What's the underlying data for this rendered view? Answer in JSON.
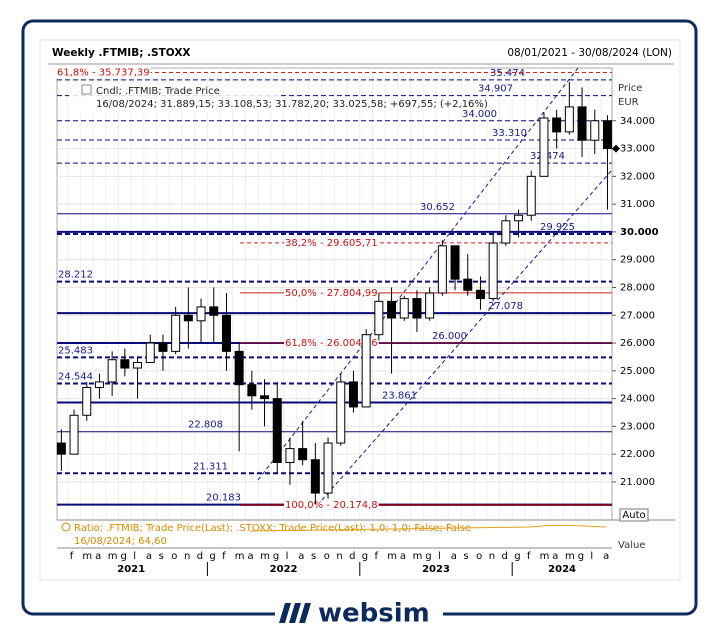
{
  "chart_data": {
    "type": "candlestick",
    "title": "Weekly .FTMIB; .STOXX",
    "date_range": "08/01/2021 - 30/08/2024 (LON)",
    "legend_lines": [
      "Cndl; .FTMIB; Trade Price",
      "16/08/2024; 31.889,15; 33.108,53; 31.782,20; 33.025,58; +697,55; (+2,16%)"
    ],
    "y_label": "Price",
    "y_unit": "EUR",
    "x": [
      "2021-01",
      "2021-02",
      "2021-03",
      "2021-04",
      "2021-05",
      "2021-06",
      "2021-07",
      "2021-08",
      "2021-09",
      "2021-10",
      "2021-11",
      "2021-12",
      "2022-01",
      "2022-02",
      "2022-03",
      "2022-04",
      "2022-05",
      "2022-06",
      "2022-07",
      "2022-08",
      "2022-09",
      "2022-10",
      "2022-11",
      "2022-12",
      "2023-01",
      "2023-02",
      "2023-03",
      "2023-04",
      "2023-05",
      "2023-06",
      "2023-07",
      "2023-08",
      "2023-09",
      "2023-10",
      "2023-11",
      "2023-12",
      "2024-01",
      "2024-02",
      "2024-03",
      "2024-04",
      "2024-05",
      "2024-06",
      "2024-07",
      "2024-08"
    ],
    "open": [
      22400,
      22000,
      23400,
      24400,
      24600,
      25400,
      25100,
      25300,
      26000,
      25700,
      27000,
      26800,
      27300,
      27000,
      25700,
      24500,
      24100,
      24000,
      21700,
      22200,
      21800,
      20600,
      22400,
      24600,
      23700,
      26300,
      27500,
      26900,
      27600,
      26900,
      27800,
      29500,
      28300,
      27900,
      27600,
      29600,
      30400,
      30600,
      32000,
      34100,
      33600,
      34500,
      33300,
      34000
    ],
    "high": [
      22900,
      23600,
      24600,
      24900,
      25700,
      25800,
      25500,
      26300,
      26300,
      27300,
      28000,
      27600,
      28000,
      27800,
      26000,
      25000,
      24700,
      24600,
      22600,
      23200,
      22400,
      22600,
      24900,
      25000,
      26500,
      27800,
      28000,
      27700,
      27900,
      28000,
      29700,
      29500,
      29200,
      28400,
      29900,
      30600,
      30800,
      32200,
      34300,
      34400,
      35400,
      35200,
      34400,
      34200
    ],
    "low": [
      21400,
      22000,
      23200,
      24000,
      24100,
      24800,
      24000,
      25300,
      25000,
      25600,
      25800,
      26000,
      26000,
      25000,
      22100,
      23600,
      23000,
      21300,
      20900,
      21600,
      20200,
      20400,
      22300,
      23500,
      23700,
      26100,
      24900,
      26800,
      26400,
      26800,
      27700,
      27900,
      27700,
      27200,
      27500,
      29500,
      29800,
      30400,
      32000,
      33000,
      33500,
      32700,
      32800,
      30800
    ],
    "close": [
      22000,
      23400,
      24400,
      24600,
      25400,
      25100,
      25300,
      26000,
      25700,
      27000,
      26800,
      27300,
      27000,
      25700,
      24500,
      24100,
      24000,
      21700,
      22200,
      21800,
      20600,
      22400,
      24600,
      23700,
      26300,
      27500,
      26900,
      27600,
      26900,
      27800,
      29500,
      28300,
      27900,
      27600,
      29600,
      30400,
      30600,
      32000,
      34100,
      33600,
      34500,
      33300,
      34000,
      33000
    ],
    "month_labels": [
      "f",
      "m",
      "a",
      "m",
      "g",
      "l",
      "a",
      "s",
      "o",
      "n",
      "d",
      "g",
      "f",
      "m",
      "a",
      "m",
      "g",
      "l",
      "a",
      "s",
      "o",
      "n",
      "d",
      "g",
      "f",
      "m",
      "a",
      "m",
      "g",
      "l",
      "a",
      "s",
      "o",
      "n",
      "d",
      "g",
      "f",
      "m",
      "a",
      "m",
      "g",
      "l",
      "a"
    ],
    "year_labels": [
      "2021",
      "2022",
      "2023",
      "2024"
    ],
    "ylim": [
      19630,
      35900
    ],
    "yticks": [
      {
        "value": 21000,
        "label": "21.000"
      },
      {
        "value": 22000,
        "label": "22.000"
      },
      {
        "value": 23000,
        "label": "23.000"
      },
      {
        "value": 24000,
        "label": "24.000"
      },
      {
        "value": 25000,
        "label": "25.000"
      },
      {
        "value": 26000,
        "label": "26.000"
      },
      {
        "value": 27000,
        "label": "27.000"
      },
      {
        "value": 28000,
        "label": "28.000"
      },
      {
        "value": 29000,
        "label": "29.000"
      },
      {
        "value": 30000,
        "label": "30.000"
      },
      {
        "value": 31000,
        "label": "31.000"
      },
      {
        "value": 32000,
        "label": "32.000"
      },
      {
        "value": 33000,
        "label": "33.000"
      },
      {
        "value": 34000,
        "label": "34.000"
      }
    ],
    "grid": true,
    "levels": [
      {
        "value": 35474,
        "label": "35.474",
        "style": "dashed"
      },
      {
        "value": 34907,
        "label": "34.907",
        "style": "dashed"
      },
      {
        "value": 34000,
        "label": "34.000",
        "style": "dashed"
      },
      {
        "value": 33310,
        "label": "33.310",
        "style": "dashed"
      },
      {
        "value": 32474,
        "label": "32.474",
        "style": "dashed"
      },
      {
        "value": 30652,
        "label": "30.652",
        "style": "solid"
      },
      {
        "value": 30000,
        "style": "thick"
      },
      {
        "value": 29925,
        "label": "29.925",
        "style": "thickdashed"
      },
      {
        "value": 28212,
        "label": "28.212",
        "style": "thickdashed"
      },
      {
        "value": 27078,
        "label": "27.078",
        "style": "thick"
      },
      {
        "value": 26000,
        "label": "26.000",
        "style": "thick"
      },
      {
        "value": 25483,
        "label": "25.483",
        "style": "thickdashed"
      },
      {
        "value": 24544,
        "label": "24.544",
        "style": "thickdashed"
      },
      {
        "value": 23861,
        "label": "23.861",
        "style": "thick"
      },
      {
        "value": 22808,
        "label": "22.808",
        "style": "solid"
      },
      {
        "value": 21311,
        "label": "21.311",
        "style": "thickdashed"
      },
      {
        "value": 20183,
        "label": "20.183",
        "style": "thick"
      }
    ],
    "fibonacci": [
      {
        "value": 35737.39,
        "label": "61,8% - 35.737,39",
        "style": "dashed"
      },
      {
        "value": 29605.71,
        "label": "38,2% - 29.605,71",
        "style": "dashed"
      },
      {
        "value": 27804.99,
        "label": "50,0% - 27.804,99",
        "style": "solid"
      },
      {
        "value": 26004.26,
        "label": "61,8% - 26.004,26",
        "style": "solid"
      },
      {
        "value": 20174.8,
        "label": "100,0% - 20.174,8",
        "style": "thick"
      }
    ],
    "scale_button": "Auto",
    "ratio_lines": [
      "Ratio; .FTMIB; Trade Price(Last); .STOXX; Trade Price(Last); 1,0; 1,0; False; False",
      "16/08/2024; 64,60"
    ],
    "ratio_axis_label": "Value",
    "brand": "websim"
  }
}
